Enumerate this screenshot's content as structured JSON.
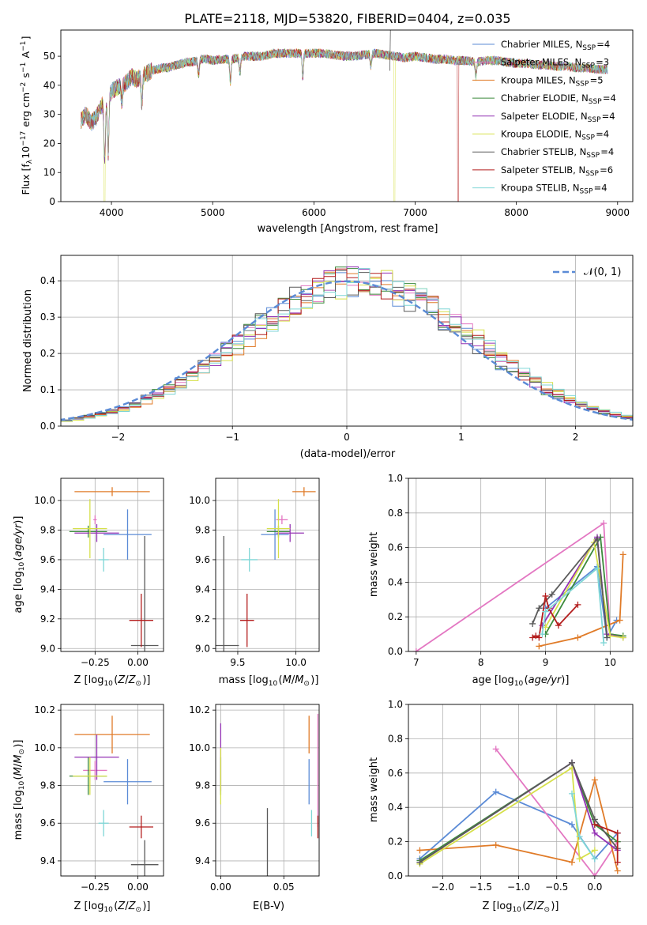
{
  "title": "PLATE=2118, MJD=53820, FIBERID=0404, z=0.035",
  "series_names": [
    "Chabrier MILES",
    "Salpeter MILES",
    "Kroupa MILES",
    "Chabrier ELODIE",
    "Salpeter ELODIE",
    "Kroupa ELODIE",
    "Chabrier STELIB",
    "Salpeter STELIB",
    "Kroupa STELIB"
  ],
  "series_colors": [
    "#5b8bd6",
    "#e377c2",
    "#e07b28",
    "#3c8a3c",
    "#9432b4",
    "#d6e04a",
    "#5a5a5a",
    "#b41e1e",
    "#7fd6d6"
  ],
  "chart_data": [
    {
      "id": "spectrum",
      "type": "line",
      "xlabel": "wavelength [Angstrom, rest frame]",
      "ylabel": "Flux [f_λ10^{-17} erg cm^{-2} s^{-1} A^{-1}]",
      "ylabel_parts": [
        "Flux [f",
        "λ",
        "10",
        "−17",
        " erg cm",
        "−2",
        " s",
        "−1",
        " A",
        "−1",
        "]"
      ],
      "xlim": [
        3500,
        9150
      ],
      "ylim": [
        0,
        59
      ],
      "xticks": [
        4000,
        5000,
        6000,
        7000,
        8000,
        9000
      ],
      "yticks": [
        0,
        10,
        20,
        30,
        40,
        50
      ],
      "grid": false,
      "legend_position": "top-right",
      "legend": [
        "Chabrier MILES, N_SSP=4",
        "Salpeter MILES, N_SSP=3",
        "Kroupa MILES, N_SSP=5",
        "Chabrier ELODIE, N_SSP=4",
        "Salpeter ELODIE, N_SSP=4",
        "Kroupa ELODIE, N_SSP=4",
        "Chabrier STELIB, N_SSP=4",
        "Salpeter STELIB, N_SSP=6",
        "Kroupa STELIB, N_SSP=4"
      ],
      "continuum_x": [
        3700,
        3750,
        3800,
        3850,
        3900,
        3950,
        4000,
        4050,
        4100,
        4150,
        4200,
        4250,
        4300,
        4350,
        4400,
        4450,
        4500,
        4550,
        4600,
        4650,
        4700,
        4750,
        4800,
        4850,
        4900,
        4950,
        5000,
        5100,
        5200,
        5300,
        5400,
        5500,
        5600,
        5700,
        5800,
        5900,
        6000,
        6100,
        6200,
        6300,
        6400,
        6500,
        6600,
        6700,
        6800,
        6900,
        7000,
        7100,
        7200,
        7300,
        7400,
        7500,
        7600,
        7700,
        7800,
        7900,
        8000,
        8100,
        8200,
        8300,
        8400,
        8500,
        8600,
        8700,
        8800,
        8900
      ],
      "continuum_y": [
        28,
        30,
        27,
        29,
        33,
        34,
        38,
        39,
        40,
        41,
        43,
        42,
        43,
        44,
        45,
        45.5,
        46,
        46,
        46.5,
        47,
        47.5,
        48,
        48,
        48.5,
        49,
        49,
        48.5,
        49,
        49,
        50,
        50,
        50,
        51,
        51,
        51,
        51,
        51,
        51,
        50.5,
        50,
        50,
        50.5,
        51,
        50.5,
        50,
        49.5,
        50,
        49.5,
        49,
        49,
        48.5,
        48.5,
        48,
        48.5,
        48.5,
        48,
        47.5,
        47.5,
        47,
        47,
        46.5,
        46.5,
        46,
        46,
        45.5,
        45.5
      ],
      "absorption_features": [
        {
          "x": 3933,
          "depth": 20
        },
        {
          "x": 3968,
          "depth": 19
        },
        {
          "x": 4102,
          "depth": 6
        },
        {
          "x": 4300,
          "depth": 10
        },
        {
          "x": 4861,
          "depth": 5
        },
        {
          "x": 5175,
          "depth": 8
        },
        {
          "x": 5270,
          "depth": 5
        },
        {
          "x": 5890,
          "depth": 8
        },
        {
          "x": 6563,
          "depth": 4
        },
        {
          "x": 7600,
          "depth": 5
        }
      ],
      "artifact_drops": [
        {
          "x": 3925,
          "series": 5
        },
        {
          "x": 6790,
          "series": 5
        },
        {
          "x": 7420,
          "series": 7
        }
      ],
      "spike": {
        "x": 6750,
        "y": 59
      }
    },
    {
      "id": "residuals",
      "type": "line",
      "xlabel": "(data-model)/error",
      "ylabel": "Normed distribution",
      "xlim": [
        -2.5,
        2.5
      ],
      "ylim": [
        0,
        0.47
      ],
      "xticks": [
        -2,
        -1,
        0,
        1,
        2
      ],
      "xticklabels": [
        "−2",
        "−1",
        "0",
        "1",
        "2"
      ],
      "yticks": [
        0.0,
        0.1,
        0.2,
        0.3,
        0.4
      ],
      "yticklabels": [
        "0.0",
        "0.1",
        "0.2",
        "0.3",
        "0.4"
      ],
      "grid": true,
      "legend_position": "top-right",
      "legend": [
        "𝒩(0, 1)"
      ],
      "bin_width": 0.1,
      "reference_curve": "gaussian mean 0 sigma 1"
    },
    {
      "id": "age_vs_Z",
      "type": "scatter",
      "xlabel": "Z [log10(Z/Z⊙)]",
      "ylabel": "age  [log10(age/yr)]",
      "xlim": [
        -0.45,
        0.15
      ],
      "ylim": [
        8.98,
        10.15
      ],
      "xticks": [
        -0.25,
        0.0
      ],
      "xticklabels": [
        "−0.25",
        "0.00"
      ],
      "yticks": [
        9.0,
        9.2,
        9.4,
        9.6,
        9.8,
        10.0
      ],
      "yticklabels": [
        "9.0",
        "9.2",
        "9.4",
        "9.6",
        "9.8",
        "10.0"
      ],
      "grid": true,
      "points": [
        {
          "x": -0.06,
          "y": 9.77,
          "xerr": 0.14,
          "yerr": 0.17,
          "series": 0
        },
        {
          "x": -0.25,
          "y": 9.87,
          "xerr": 0.01,
          "yerr": 0.03,
          "series": 1
        },
        {
          "x": -0.15,
          "y": 10.06,
          "xerr": 0.22,
          "yerr": 0.03,
          "series": 2
        },
        {
          "x": -0.29,
          "y": 9.79,
          "xerr": 0.11,
          "yerr": 0.04,
          "series": 3
        },
        {
          "x": -0.24,
          "y": 9.78,
          "xerr": 0.13,
          "yerr": 0.06,
          "series": 4
        },
        {
          "x": -0.28,
          "y": 9.81,
          "xerr": 0.1,
          "yerr": 0.2,
          "series": 5
        },
        {
          "x": 0.04,
          "y": 9.02,
          "xerr": 0.08,
          "yerr": 0.74,
          "series": 6
        },
        {
          "x": 0.02,
          "y": 9.19,
          "xerr": 0.07,
          "yerr": 0.18,
          "series": 7
        },
        {
          "x": -0.2,
          "y": 9.6,
          "xerr": 0.03,
          "yerr": 0.08,
          "series": 8
        }
      ]
    },
    {
      "id": "age_vs_mass",
      "type": "scatter",
      "xlabel": "mass [log10(M/M⊙)]",
      "ylabel": "",
      "xlim": [
        9.31,
        10.2
      ],
      "ylim": [
        8.98,
        10.15
      ],
      "xticks": [
        9.5,
        10.0
      ],
      "xticklabels": [
        "9.5",
        "10.0"
      ],
      "yticks": [
        9.0,
        9.2,
        9.4,
        9.6,
        9.8,
        10.0
      ],
      "yticklabels": [
        "9.0",
        "9.2",
        "9.4",
        "9.6",
        "9.8",
        "10.0"
      ],
      "grid": true,
      "points": [
        {
          "x": 9.82,
          "y": 9.77,
          "xerr": 0.12,
          "yerr": 0.17,
          "series": 0
        },
        {
          "x": 9.88,
          "y": 9.87,
          "xerr": 0.05,
          "yerr": 0.03,
          "series": 1
        },
        {
          "x": 10.07,
          "y": 10.06,
          "xerr": 0.1,
          "yerr": 0.03,
          "series": 2
        },
        {
          "x": 9.85,
          "y": 9.79,
          "xerr": 0.1,
          "yerr": 0.04,
          "series": 3
        },
        {
          "x": 9.95,
          "y": 9.78,
          "xerr": 0.12,
          "yerr": 0.06,
          "series": 4
        },
        {
          "x": 9.85,
          "y": 9.81,
          "xerr": 0.1,
          "yerr": 0.2,
          "series": 5
        },
        {
          "x": 9.38,
          "y": 9.02,
          "xerr": 0.13,
          "yerr": 0.74,
          "series": 6
        },
        {
          "x": 9.58,
          "y": 9.19,
          "xerr": 0.06,
          "yerr": 0.18,
          "series": 7
        },
        {
          "x": 9.6,
          "y": 9.6,
          "xerr": 0.07,
          "yerr": 0.08,
          "series": 8
        }
      ]
    },
    {
      "id": "mass_weight_vs_age",
      "type": "line",
      "xlabel": "age  [log10(age/yr)]",
      "ylabel": "mass weight",
      "xlim": [
        6.88,
        10.35
      ],
      "ylim": [
        0,
        1
      ],
      "xticks": [
        7,
        8,
        9,
        10
      ],
      "yticks": [
        0.0,
        0.2,
        0.4,
        0.6,
        0.8,
        1.0
      ],
      "yticklabels": [
        "0.0",
        "0.2",
        "0.4",
        "0.6",
        "0.8",
        "1.0"
      ],
      "grid": true,
      "series": [
        {
          "series": 0,
          "x": [
            9.0,
            9.8,
            9.95,
            10.1
          ],
          "y": [
            0.25,
            0.49,
            0.08,
            0.18
          ]
        },
        {
          "series": 1,
          "x": [
            7.0,
            9.9,
            10.0
          ],
          "y": [
            0.0,
            0.74,
            0.1
          ]
        },
        {
          "series": 2,
          "x": [
            8.9,
            9.5,
            10.15,
            10.2
          ],
          "y": [
            0.03,
            0.08,
            0.18,
            0.56
          ]
        },
        {
          "series": 3,
          "x": [
            9.0,
            9.85,
            10.0,
            10.2
          ],
          "y": [
            0.1,
            0.66,
            0.1,
            0.09
          ]
        },
        {
          "series": 4,
          "x": [
            8.95,
            9.8,
            9.95,
            10.2
          ],
          "y": [
            0.15,
            0.66,
            0.1,
            0.08
          ]
        },
        {
          "series": 5,
          "x": [
            9.0,
            9.75,
            10.0,
            10.2
          ],
          "y": [
            0.14,
            0.63,
            0.09,
            0.08
          ]
        },
        {
          "series": 6,
          "x": [
            8.8,
            8.9,
            9.1,
            9.8,
            9.95
          ],
          "y": [
            0.16,
            0.25,
            0.33,
            0.65,
            0.08
          ]
        },
        {
          "series": 7,
          "x": [
            8.8,
            8.85,
            8.9,
            9.0,
            9.05,
            9.2,
            9.5
          ],
          "y": [
            0.08,
            0.09,
            0.08,
            0.32,
            0.25,
            0.15,
            0.27
          ]
        },
        {
          "series": 8,
          "x": [
            8.95,
            9.0,
            9.8,
            9.9
          ],
          "y": [
            0.1,
            0.23,
            0.48,
            0.05
          ]
        }
      ]
    },
    {
      "id": "mass_vs_Z",
      "type": "scatter",
      "xlabel": "Z [log10(Z/Z⊙)]",
      "ylabel": "mass [log10(M/M⊙)]",
      "xlim": [
        -0.45,
        0.15
      ],
      "ylim": [
        9.32,
        10.23
      ],
      "xticks": [
        -0.25,
        0.0
      ],
      "xticklabels": [
        "−0.25",
        "0.00"
      ],
      "yticks": [
        9.4,
        9.6,
        9.8,
        10.0,
        10.2
      ],
      "yticklabels": [
        "9.4",
        "9.6",
        "9.8",
        "10.0",
        "10.2"
      ],
      "grid": true,
      "points": [
        {
          "x": -0.06,
          "y": 9.82,
          "xerr": 0.14,
          "yerr": 0.12,
          "series": 0
        },
        {
          "x": -0.25,
          "y": 9.88,
          "xerr": 0.07,
          "yerr": 0.05,
          "series": 1
        },
        {
          "x": -0.15,
          "y": 10.07,
          "xerr": 0.22,
          "yerr": 0.1,
          "series": 2
        },
        {
          "x": -0.29,
          "y": 9.85,
          "xerr": 0.11,
          "yerr": 0.1,
          "series": 3
        },
        {
          "x": -0.24,
          "y": 9.95,
          "xerr": 0.13,
          "yerr": 0.12,
          "series": 4
        },
        {
          "x": -0.28,
          "y": 9.85,
          "xerr": 0.1,
          "yerr": 0.1,
          "series": 5
        },
        {
          "x": 0.04,
          "y": 9.38,
          "xerr": 0.08,
          "yerr": 0.13,
          "series": 6
        },
        {
          "x": 0.02,
          "y": 9.58,
          "xerr": 0.07,
          "yerr": 0.06,
          "series": 7
        },
        {
          "x": -0.2,
          "y": 9.6,
          "xerr": 0.03,
          "yerr": 0.07,
          "series": 8
        }
      ]
    },
    {
      "id": "mass_vs_EBV",
      "type": "scatter",
      "xlabel": "E(B-V)",
      "ylabel": "",
      "xlim": [
        -0.004,
        0.078
      ],
      "ylim": [
        9.32,
        10.23
      ],
      "xticks": [
        0.0,
        0.05
      ],
      "xticklabels": [
        "0.00",
        "0.05"
      ],
      "yticks": [
        9.4,
        9.6,
        9.8,
        10.0,
        10.2
      ],
      "yticklabels": [
        "9.4",
        "9.6",
        "9.8",
        "10.0",
        "10.2"
      ],
      "grid": true,
      "points": [
        {
          "x": 0.07,
          "y": 9.82,
          "yerr": 0.12,
          "series": 0
        },
        {
          "x": 0.077,
          "y": 9.88,
          "yerr": 0.3,
          "series": 1
        },
        {
          "x": 0.07,
          "y": 10.07,
          "yerr": 0.1,
          "series": 2
        },
        {
          "x": 0.0,
          "y": 9.85,
          "yerr": 0.1,
          "series": 3
        },
        {
          "x": 0.0,
          "y": 9.95,
          "yerr": 0.18,
          "series": 4
        },
        {
          "x": 0.0,
          "y": 9.85,
          "yerr": 0.15,
          "series": 5
        },
        {
          "x": 0.037,
          "y": 9.38,
          "yerr": 0.3,
          "series": 6
        },
        {
          "x": 0.077,
          "y": 9.58,
          "yerr": 0.06,
          "series": 7
        },
        {
          "x": 0.072,
          "y": 9.6,
          "yerr": 0.07,
          "series": 8
        }
      ]
    },
    {
      "id": "mass_weight_vs_Z",
      "type": "line",
      "xlabel": "Z [log10(Z/Z⊙)]",
      "ylabel": "mass weight",
      "xlim": [
        -2.45,
        0.5
      ],
      "ylim": [
        0,
        1
      ],
      "xticks": [
        -2.0,
        -1.5,
        -1.0,
        -0.5,
        0.0
      ],
      "xticklabels": [
        "−2.0",
        "−1.5",
        "−1.0",
        "−0.5",
        "0.0"
      ],
      "yticks": [
        0.0,
        0.2,
        0.4,
        0.6,
        0.8,
        1.0
      ],
      "yticklabels": [
        "0.0",
        "0.2",
        "0.4",
        "0.6",
        "0.8",
        "1.0"
      ],
      "grid": true,
      "series": [
        {
          "series": 0,
          "x": [
            -2.3,
            -1.3,
            -0.3,
            0.0,
            0.3
          ],
          "y": [
            0.1,
            0.49,
            0.3,
            0.1,
            0.25
          ]
        },
        {
          "series": 1,
          "x": [
            -1.3,
            0.0,
            0.3
          ],
          "y": [
            0.74,
            0.0,
            0.2
          ]
        },
        {
          "series": 2,
          "x": [
            -2.3,
            -1.3,
            -0.3,
            0.0,
            0.3
          ],
          "y": [
            0.15,
            0.18,
            0.08,
            0.56,
            0.03
          ]
        },
        {
          "series": 3,
          "x": [
            -2.3,
            -0.3,
            0.0,
            0.3
          ],
          "y": [
            0.09,
            0.66,
            0.3,
            0.2
          ]
        },
        {
          "series": 4,
          "x": [
            -2.3,
            -0.3,
            0.0,
            0.3
          ],
          "y": [
            0.08,
            0.66,
            0.25,
            0.15
          ]
        },
        {
          "series": 5,
          "x": [
            -2.3,
            -0.3,
            -0.2,
            0.0
          ],
          "y": [
            0.07,
            0.63,
            0.1,
            0.15
          ]
        },
        {
          "series": 6,
          "x": [
            -2.3,
            -0.3,
            0.0,
            0.3
          ],
          "y": [
            0.08,
            0.66,
            0.33,
            0.16
          ]
        },
        {
          "series": 7,
          "x": [
            0.0,
            0.3,
            0.3
          ],
          "y": [
            0.3,
            0.25,
            0.08
          ]
        },
        {
          "series": 8,
          "x": [
            -0.3,
            -0.2,
            0.0
          ],
          "y": [
            0.48,
            0.23,
            0.1
          ]
        }
      ]
    }
  ]
}
